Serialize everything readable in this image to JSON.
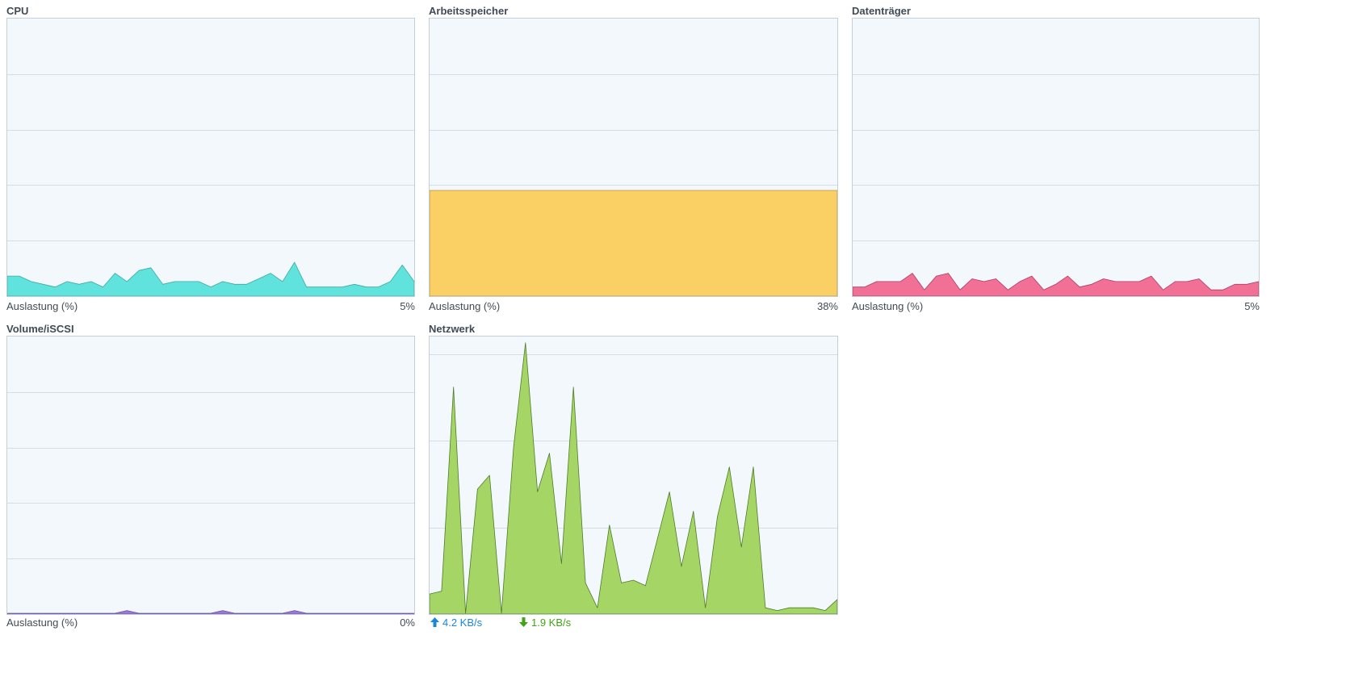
{
  "widgets": {
    "cpu": {
      "title": "CPU",
      "label": "Auslastung (%)",
      "value": "5%",
      "color": "#5fe3dc",
      "stroke": "#3fa8a3"
    },
    "memory": {
      "title": "Arbeitsspeicher",
      "label": "Auslastung (%)",
      "value": "38%",
      "color": "#fad064",
      "stroke": "#b49038"
    },
    "disk": {
      "title": "Datenträger",
      "label": "Auslastung (%)",
      "value": "5%",
      "color": "#f26f96",
      "stroke": "#a84060"
    },
    "volume": {
      "title": "Volume/iSCSI",
      "label": "Auslastung (%)",
      "value": "0%",
      "color": "#9a78d8",
      "stroke": "#6a50a8"
    },
    "network": {
      "title": "Netzwerk",
      "upload": "4.2 KB/s",
      "download": "1.9 KB/s",
      "color": "#a5d665",
      "stroke": "#4f7a2a",
      "upload_color": "#1a87d6",
      "download_color": "#41a317",
      "icons": {
        "upload": "arrow-up-icon",
        "download": "arrow-down-icon"
      }
    }
  },
  "chart_data": [
    {
      "id": "cpu",
      "type": "area",
      "ylim": [
        0,
        100
      ],
      "grid": true,
      "series": [
        {
          "values": [
            7,
            7,
            5,
            4,
            3,
            5,
            4,
            5,
            3,
            8,
            5,
            9,
            10,
            4,
            5,
            5,
            5,
            3,
            5,
            4,
            4,
            6,
            8,
            5,
            12,
            3,
            3,
            3,
            3,
            4,
            3,
            3,
            5,
            11,
            5
          ]
        }
      ]
    },
    {
      "id": "memory",
      "type": "area",
      "ylim": [
        0,
        100
      ],
      "grid": true,
      "series": [
        {
          "values": [
            38,
            38,
            38,
            38,
            38,
            38,
            38,
            38,
            38,
            38,
            38,
            38,
            38,
            38,
            38,
            38,
            38,
            38,
            38,
            38,
            38,
            38,
            38,
            38,
            38,
            38,
            38,
            38,
            38,
            38,
            38,
            38,
            38,
            38,
            38
          ]
        }
      ]
    },
    {
      "id": "disk",
      "type": "area",
      "ylim": [
        0,
        100
      ],
      "grid": true,
      "series": [
        {
          "values": [
            3,
            3,
            5,
            5,
            5,
            8,
            2,
            7,
            8,
            2,
            6,
            5,
            6,
            2,
            5,
            7,
            2,
            4,
            7,
            3,
            4,
            6,
            5,
            5,
            5,
            7,
            2,
            5,
            5,
            6,
            2,
            2,
            4,
            4,
            5
          ]
        }
      ]
    },
    {
      "id": "volume",
      "type": "area",
      "ylim": [
        0,
        100
      ],
      "grid": true,
      "series": [
        {
          "values": [
            0,
            0,
            0,
            0,
            0,
            0,
            0,
            0,
            0,
            0,
            1,
            0,
            0,
            0,
            0,
            0,
            0,
            0,
            1,
            0,
            0,
            0,
            0,
            0,
            1,
            0,
            0,
            0,
            0,
            0,
            0,
            0,
            0,
            0,
            0
          ]
        }
      ]
    },
    {
      "id": "network",
      "type": "area",
      "ylim": [
        0,
        100
      ],
      "grid": true,
      "series": [
        {
          "values": [
            7,
            8,
            82,
            0,
            45,
            50,
            0,
            60,
            98,
            44,
            58,
            18,
            82,
            11,
            2,
            32,
            11,
            12,
            10,
            27,
            44,
            17,
            37,
            2,
            35,
            53,
            24,
            53,
            2,
            1,
            2,
            2,
            2,
            1,
            5
          ]
        }
      ]
    }
  ]
}
